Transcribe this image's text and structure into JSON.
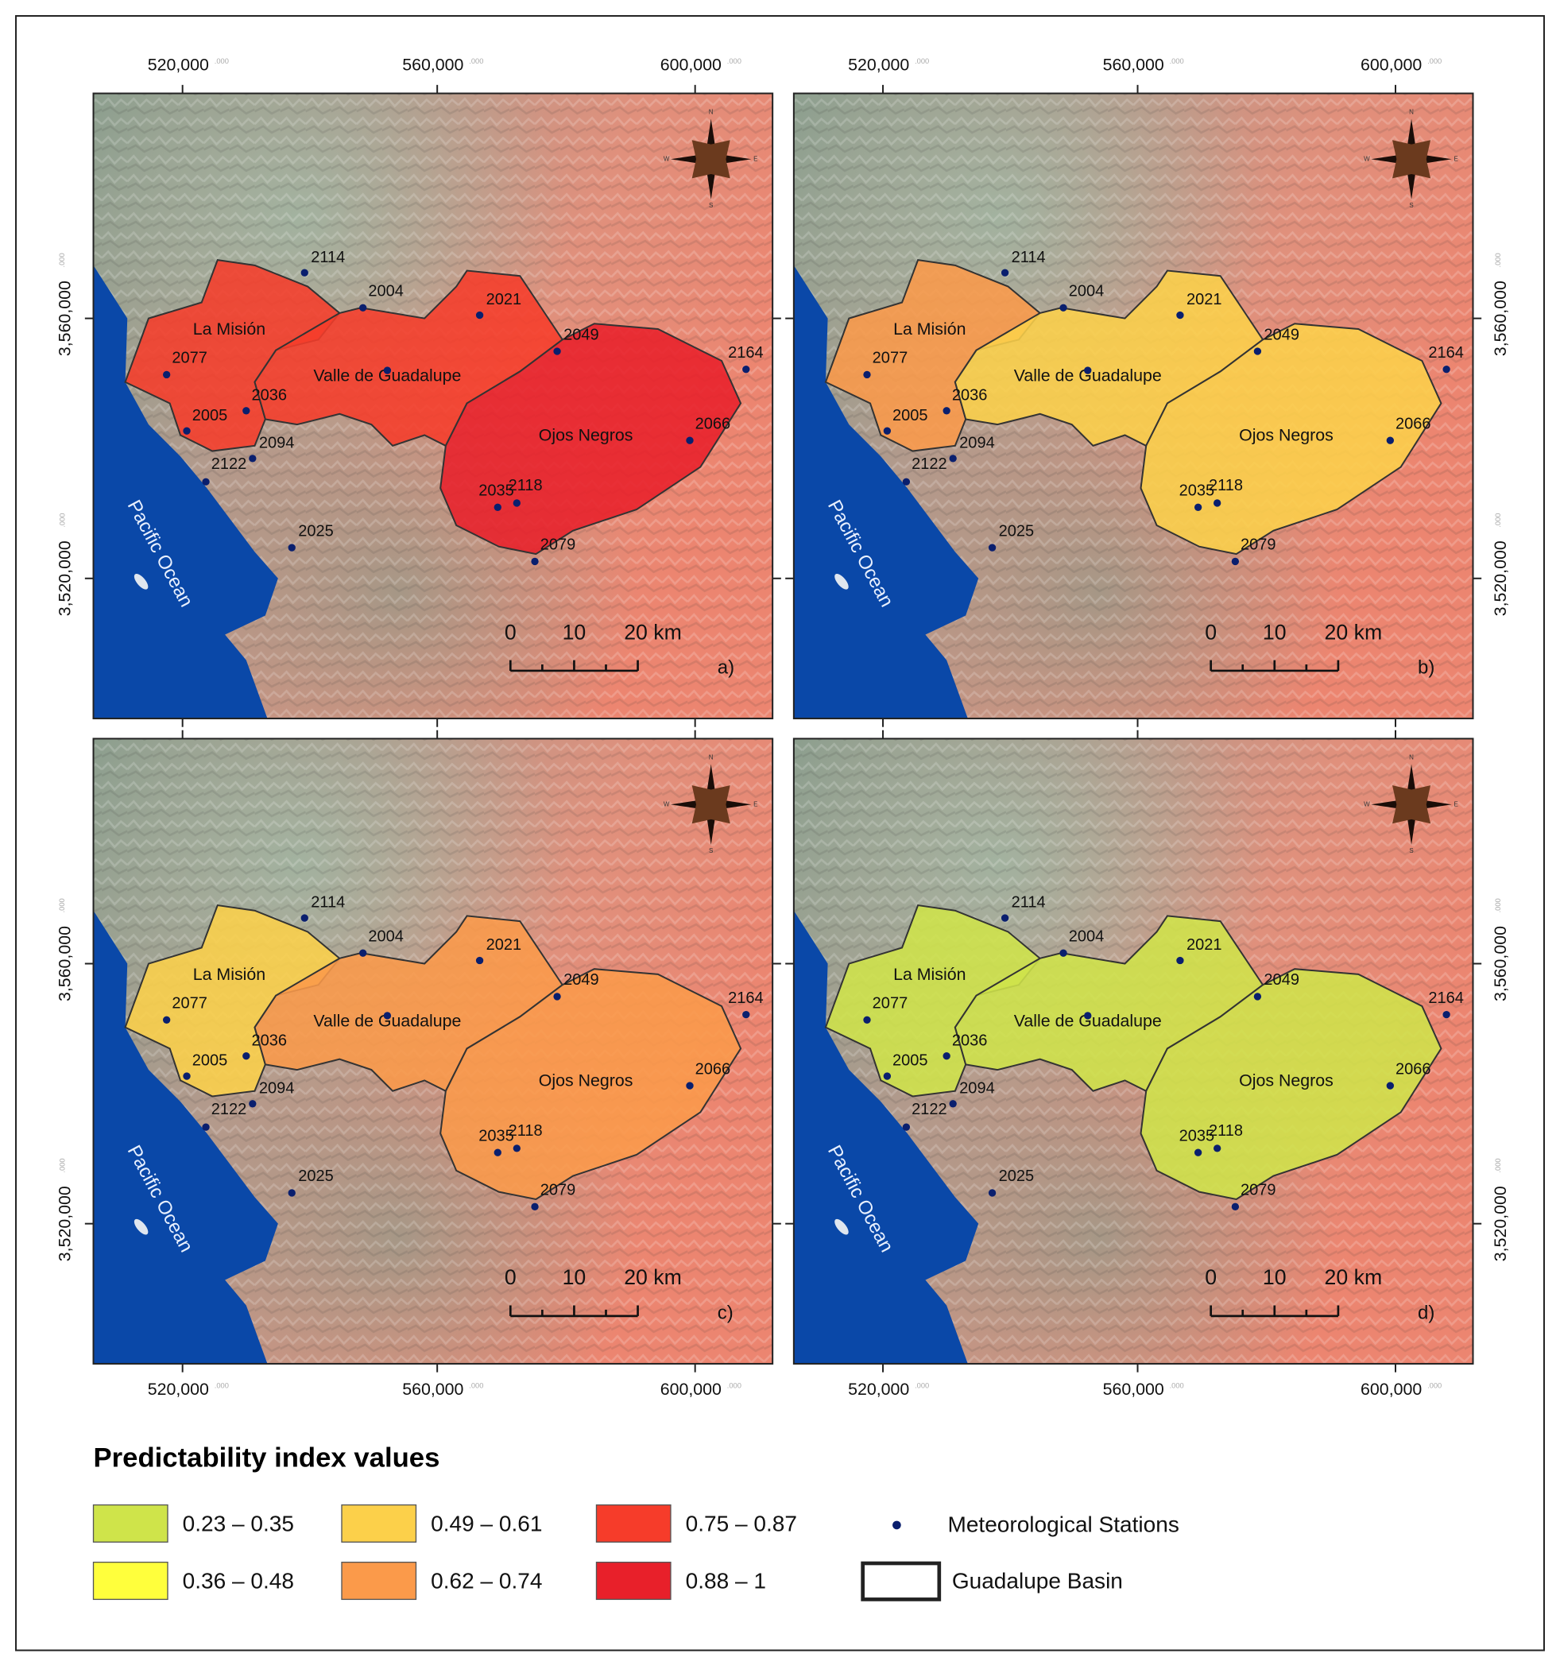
{
  "panels": [
    {
      "label": "a)",
      "region_classes": [
        4,
        4,
        5
      ]
    },
    {
      "label": "b)",
      "region_classes": [
        3,
        2,
        2
      ]
    },
    {
      "label": "c)",
      "region_classes": [
        2,
        3,
        3
      ]
    },
    {
      "label": "d)",
      "region_classes": [
        0,
        0,
        0
      ]
    }
  ],
  "x_tick_labels": [
    "520,000",
    "560,000",
    "600,000"
  ],
  "y_tick_labels": [
    "3,560,000",
    "3,520,000"
  ],
  "tick_suffix": ".000",
  "regions": [
    "La Misión",
    "Valle de  Guadalupe",
    "Ojos Negros"
  ],
  "ocean": "Pacific Ocean",
  "stations": [
    "2114",
    "2004",
    "2021",
    "2049",
    "2164",
    "2077",
    "2036",
    "2005",
    "2094",
    "2122",
    "2066",
    "2035",
    "2118",
    "2025",
    "2079"
  ],
  "scale_bar": [
    "0",
    "10",
    "20 km"
  ],
  "compass": [
    "N",
    "E",
    "S",
    "W"
  ],
  "legend": {
    "title": "Predictability index values",
    "classes": [
      {
        "label": "0.23 – 0.35",
        "color": "#cfe44a"
      },
      {
        "label": "0.36 – 0.48",
        "color": "#ffff3c"
      },
      {
        "label": "0.49 – 0.61",
        "color": "#fcd04a"
      },
      {
        "label": "0.62 – 0.74",
        "color": "#fb9a4a"
      },
      {
        "label": "0.75 – 0.87",
        "color": "#f63c2a"
      },
      {
        "label": "0.88 – 1",
        "color": "#e8202a"
      }
    ],
    "stations": "Meteorological Stations",
    "basin": "Guadalupe Basin"
  }
}
